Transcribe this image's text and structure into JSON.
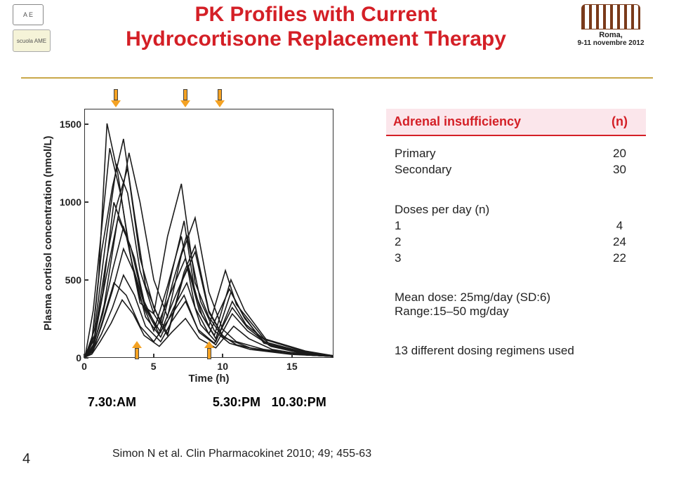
{
  "header": {
    "title_line1": "PK Profiles with Current",
    "title_line2": "Hydrocortisone Replacement Therapy",
    "title_color": "#d41f26",
    "title_fontsize": 30,
    "rule_color": "#c9a84a",
    "left_logo1_text": "A E",
    "left_logo2_text": "scuola AME",
    "right_location": "Roma,",
    "right_dates": "9-11 novembre 2012"
  },
  "chart": {
    "type": "line",
    "xlabel": "Time (h)",
    "ylabel": "Plasma cortisol concentration (nmol/L)",
    "label_fontsize": 15,
    "xlim": [
      0,
      18
    ],
    "ylim": [
      0,
      1600
    ],
    "yticks": [
      0,
      500,
      1000,
      1500
    ],
    "ytick_labels": [
      "0",
      "500",
      "1000",
      "1500"
    ],
    "xticks": [
      0,
      5,
      10,
      15
    ],
    "xtick_labels": [
      "0",
      "5",
      "10",
      "15"
    ],
    "line_color": "#1a1a1a",
    "line_width": 1.6,
    "background_color": "#ffffff",
    "border_color": "#333333",
    "dose_arrows_top_x": [
      2.3,
      7.3,
      9.8
    ],
    "dose_arrows_bottom_x": [
      3.8,
      9.0
    ],
    "arrow_fill": "#f4a223",
    "arrow_border": "#444444",
    "series": [
      [
        [
          0,
          0
        ],
        [
          0.5,
          110
        ],
        [
          1,
          520
        ],
        [
          1.6,
          1510
        ],
        [
          2.4,
          1180
        ],
        [
          3.2,
          700
        ],
        [
          4,
          350
        ],
        [
          5,
          280
        ],
        [
          6,
          780
        ],
        [
          7,
          1120
        ],
        [
          8,
          480
        ],
        [
          9,
          260
        ],
        [
          10,
          130
        ],
        [
          12,
          60
        ],
        [
          15,
          20
        ],
        [
          18,
          5
        ]
      ],
      [
        [
          0,
          0
        ],
        [
          0.5,
          90
        ],
        [
          1.2,
          680
        ],
        [
          2,
          1100
        ],
        [
          2.8,
          1410
        ],
        [
          3.6,
          920
        ],
        [
          4.4,
          460
        ],
        [
          5.5,
          220
        ],
        [
          6.3,
          540
        ],
        [
          7.2,
          880
        ],
        [
          8,
          410
        ],
        [
          9,
          200
        ],
        [
          10.2,
          560
        ],
        [
          11,
          340
        ],
        [
          13,
          120
        ],
        [
          16,
          40
        ],
        [
          18,
          10
        ]
      ],
      [
        [
          0,
          0
        ],
        [
          0.6,
          80
        ],
        [
          1.3,
          420
        ],
        [
          2.1,
          1000
        ],
        [
          3,
          780
        ],
        [
          4,
          380
        ],
        [
          5,
          170
        ],
        [
          6,
          460
        ],
        [
          7,
          780
        ],
        [
          8,
          320
        ],
        [
          9,
          150
        ],
        [
          10.5,
          440
        ],
        [
          11.5,
          270
        ],
        [
          13,
          90
        ],
        [
          16,
          30
        ],
        [
          18,
          10
        ]
      ],
      [
        [
          0,
          0
        ],
        [
          0.6,
          60
        ],
        [
          1.4,
          340
        ],
        [
          2.3,
          850
        ],
        [
          3.2,
          1320
        ],
        [
          4,
          1000
        ],
        [
          5,
          500
        ],
        [
          6,
          260
        ],
        [
          7,
          660
        ],
        [
          8,
          900
        ],
        [
          9,
          420
        ],
        [
          10,
          180
        ],
        [
          11,
          100
        ],
        [
          13,
          50
        ],
        [
          16,
          20
        ],
        [
          18,
          5
        ]
      ],
      [
        [
          0,
          0
        ],
        [
          0.7,
          140
        ],
        [
          1.5,
          600
        ],
        [
          2.3,
          980
        ],
        [
          3.1,
          1220
        ],
        [
          4,
          640
        ],
        [
          5,
          320
        ],
        [
          6,
          150
        ],
        [
          7.2,
          550
        ],
        [
          8,
          720
        ],
        [
          9,
          300
        ],
        [
          10,
          140
        ],
        [
          11,
          80
        ],
        [
          13,
          40
        ],
        [
          16,
          15
        ],
        [
          18,
          5
        ]
      ],
      [
        [
          0,
          0
        ],
        [
          0.6,
          70
        ],
        [
          1.3,
          280
        ],
        [
          2.0,
          560
        ],
        [
          2.8,
          840
        ],
        [
          3.6,
          640
        ],
        [
          4.4,
          320
        ],
        [
          5.5,
          160
        ],
        [
          6.5,
          380
        ],
        [
          7.5,
          590
        ],
        [
          8.5,
          270
        ],
        [
          9.5,
          120
        ],
        [
          10.6,
          420
        ],
        [
          11.6,
          250
        ],
        [
          13,
          100
        ],
        [
          16,
          30
        ],
        [
          18,
          10
        ]
      ],
      [
        [
          0,
          0
        ],
        [
          0.6,
          50
        ],
        [
          1.2,
          200
        ],
        [
          2,
          430
        ],
        [
          2.8,
          700
        ],
        [
          3.6,
          540
        ],
        [
          4.4,
          260
        ],
        [
          5.5,
          130
        ],
        [
          6.4,
          310
        ],
        [
          7.4,
          480
        ],
        [
          8.4,
          210
        ],
        [
          9.5,
          100
        ],
        [
          10.7,
          360
        ],
        [
          11.7,
          210
        ],
        [
          13.5,
          80
        ],
        [
          16,
          25
        ],
        [
          18,
          8
        ]
      ],
      [
        [
          0,
          0
        ],
        [
          0.5,
          30
        ],
        [
          1.2,
          150
        ],
        [
          2,
          320
        ],
        [
          2.8,
          530
        ],
        [
          3.6,
          400
        ],
        [
          4.4,
          200
        ],
        [
          5.5,
          100
        ],
        [
          6.3,
          230
        ],
        [
          7.3,
          360
        ],
        [
          8.3,
          160
        ],
        [
          9.5,
          80
        ],
        [
          10.7,
          280
        ],
        [
          11.8,
          170
        ],
        [
          13.5,
          70
        ],
        [
          16,
          20
        ],
        [
          18,
          5
        ]
      ],
      [
        [
          0,
          0
        ],
        [
          0.5,
          20
        ],
        [
          1.1,
          100
        ],
        [
          1.9,
          220
        ],
        [
          2.7,
          370
        ],
        [
          3.5,
          280
        ],
        [
          4.3,
          140
        ],
        [
          5.4,
          70
        ],
        [
          6.3,
          160
        ],
        [
          7.3,
          250
        ],
        [
          8.3,
          120
        ],
        [
          9.5,
          60
        ],
        [
          10.8,
          200
        ],
        [
          11.9,
          120
        ],
        [
          13.6,
          50
        ],
        [
          16,
          15
        ],
        [
          18,
          5
        ]
      ],
      [
        [
          0,
          0
        ],
        [
          0.7,
          180
        ],
        [
          1.5,
          740
        ],
        [
          2.3,
          1240
        ],
        [
          3.1,
          1060
        ],
        [
          4,
          560
        ],
        [
          5,
          280
        ],
        [
          6,
          140
        ],
        [
          7.1,
          500
        ],
        [
          8,
          680
        ],
        [
          9,
          290
        ],
        [
          10,
          140
        ],
        [
          11,
          80
        ],
        [
          13,
          40
        ],
        [
          16,
          15
        ],
        [
          18,
          5
        ]
      ],
      [
        [
          0,
          0
        ],
        [
          0.7,
          120
        ],
        [
          1.5,
          500
        ],
        [
          2.4,
          900
        ],
        [
          3.3,
          720
        ],
        [
          4.2,
          380
        ],
        [
          5.2,
          190
        ],
        [
          6.3,
          430
        ],
        [
          7.3,
          640
        ],
        [
          8.3,
          300
        ],
        [
          9.4,
          140
        ],
        [
          10.6,
          500
        ],
        [
          11.6,
          300
        ],
        [
          13.2,
          110
        ],
        [
          16,
          35
        ],
        [
          18,
          10
        ]
      ],
      [
        [
          0,
          0
        ],
        [
          0.6,
          40
        ],
        [
          1.3,
          240
        ],
        [
          2.1,
          480
        ],
        [
          3,
          400
        ],
        [
          4,
          200
        ],
        [
          5,
          100
        ],
        [
          6.2,
          260
        ],
        [
          7.2,
          400
        ],
        [
          8.2,
          180
        ],
        [
          9.4,
          90
        ],
        [
          10.7,
          320
        ],
        [
          11.8,
          190
        ],
        [
          13.4,
          75
        ],
        [
          16,
          22
        ],
        [
          18,
          6
        ]
      ],
      [
        [
          0,
          0
        ],
        [
          0.6,
          300
        ],
        [
          1.2,
          820
        ],
        [
          1.8,
          1350
        ],
        [
          2.6,
          1050
        ],
        [
          3.4,
          610
        ],
        [
          4.4,
          310
        ],
        [
          5.4,
          150
        ],
        [
          6.4,
          490
        ],
        [
          7.4,
          790
        ],
        [
          8.4,
          360
        ],
        [
          9.4,
          170
        ],
        [
          10.5,
          90
        ],
        [
          12,
          50
        ],
        [
          15,
          18
        ],
        [
          18,
          6
        ]
      ]
    ]
  },
  "time_labels": {
    "am": "7.30:AM",
    "pm1": "5.30:PM",
    "pm2": "10.30:PM",
    "am_x": 2,
    "pm1_x": 11.0,
    "pm2_x": 15.5
  },
  "info": {
    "header_bg": "#fbe6eb",
    "header_color": "#d41f26",
    "header_label": "Adrenal insufficiency",
    "header_n": "(n)",
    "rows_primary": {
      "label": "Primary",
      "value": "20"
    },
    "rows_secondary": {
      "label": "Secondary",
      "value": "30"
    },
    "doses_header": "Doses per day (n)",
    "doses": [
      {
        "label": "1",
        "value": "4"
      },
      {
        "label": "2",
        "value": "24"
      },
      {
        "label": "3",
        "value": "22"
      }
    ],
    "mean_dose": "Mean dose: 25mg/day (SD:6)",
    "range": "Range:15–50 mg/day",
    "regimens_note": "13 different dosing regimens used"
  },
  "citation": "Simon N et al. Clin Pharmacokinet 2010; 49; 455-63",
  "page_number": "4"
}
